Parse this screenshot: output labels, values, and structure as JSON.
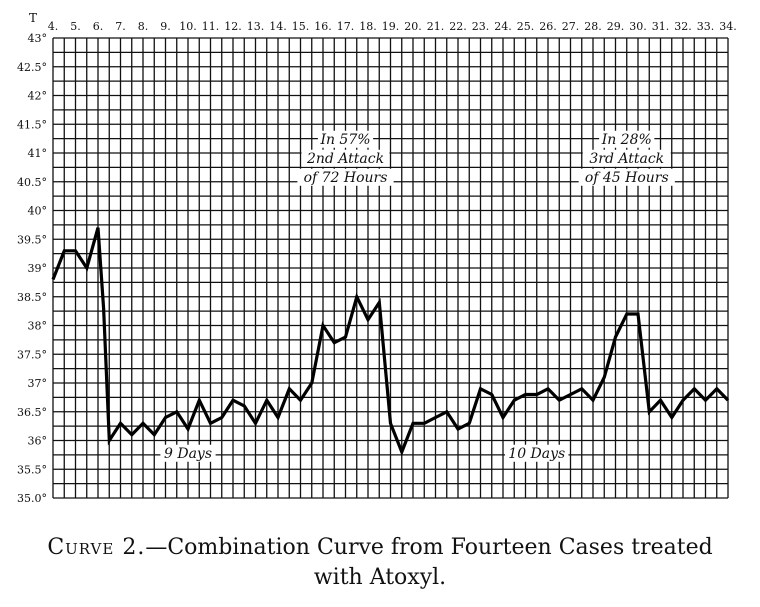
{
  "caption": {
    "label": "Curve 2.",
    "line1": "—Combination Curve from Fourteen Cases treated",
    "line2": "with Atoxyl."
  },
  "chart_data": {
    "type": "line",
    "title": "",
    "xlabel": "",
    "ylabel": "T",
    "x_ticks": [
      "4.",
      "5.",
      "6.",
      "7.",
      "8.",
      "9.",
      "10.",
      "11.",
      "12.",
      "13.",
      "14.",
      "15.",
      "16.",
      "17.",
      "18.",
      "19.",
      "20.",
      "21.",
      "22.",
      "23.",
      "24.",
      "25.",
      "26.",
      "27.",
      "28.",
      "29.",
      "30.",
      "31.",
      "32.",
      "33.",
      "34."
    ],
    "y_ticks": [
      "35.0°",
      "35.5°",
      "36°",
      "36.5°",
      "37°",
      "37.5°",
      "38°",
      "38.5°",
      "39°",
      "39.5°",
      "40°",
      "40.5°",
      "41°",
      "41.5°",
      "42°",
      "42.5°",
      "43°"
    ],
    "ylim": [
      35.0,
      43.0
    ],
    "xlim": [
      4,
      34
    ],
    "grid": true,
    "series": [
      {
        "x": [
          4,
          4.5,
          5,
          5.5,
          6,
          6.25,
          6.5,
          7,
          7.5,
          8,
          8.5,
          9,
          9.5,
          10,
          10.5,
          11,
          11.5,
          12,
          12.5,
          13,
          13.5,
          14,
          14.5,
          15,
          15.5,
          16,
          16.5,
          17,
          17.5,
          18,
          18.5,
          19,
          19.5,
          20,
          20.5,
          21,
          21.5,
          22,
          22.5,
          23,
          23.5,
          24,
          24.5,
          25,
          25.5,
          26,
          26.5,
          27,
          27.5,
          28,
          28.5,
          29,
          29.5,
          30,
          30.5,
          31,
          31.5,
          32,
          32.5,
          33,
          33.5,
          34
        ],
        "y": [
          38.8,
          39.3,
          39.3,
          39.0,
          39.7,
          38.3,
          36.0,
          36.3,
          36.1,
          36.3,
          36.1,
          36.4,
          36.5,
          36.2,
          36.7,
          36.3,
          36.4,
          36.7,
          36.6,
          36.3,
          36.7,
          36.4,
          36.9,
          36.7,
          37.0,
          38.0,
          37.7,
          37.8,
          38.5,
          38.1,
          38.4,
          36.3,
          35.8,
          36.3,
          36.3,
          36.4,
          36.5,
          36.2,
          36.3,
          36.9,
          36.8,
          36.4,
          36.7,
          36.8,
          36.8,
          36.9,
          36.7,
          36.8,
          36.9,
          36.7,
          37.1,
          37.8,
          38.2,
          38.2,
          36.5,
          36.7,
          36.4,
          36.7,
          36.9,
          36.7,
          36.9,
          36.7
        ]
      }
    ],
    "annotations": [
      {
        "lines": [
          "In 57%",
          "2nd Attack",
          "of 72 Hours"
        ],
        "x": 17,
        "y": 40.5
      },
      {
        "lines": [
          "In 28%",
          "3rd Attack",
          "of 45 Hours"
        ],
        "x": 29.5,
        "y": 40.5
      },
      {
        "lines": [
          "9 Days"
        ],
        "x": 10,
        "y": 35.7
      },
      {
        "lines": [
          "10 Days"
        ],
        "x": 25.5,
        "y": 35.7
      }
    ]
  }
}
